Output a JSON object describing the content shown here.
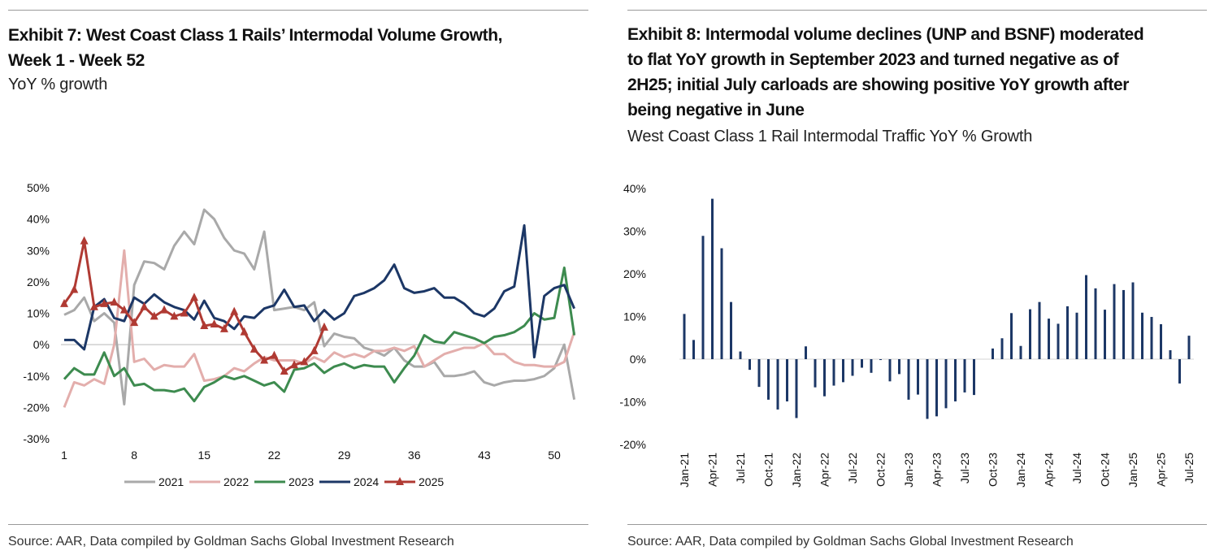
{
  "exhibit7": {
    "title_line1": "Exhibit 7: West Coast Class 1 Rails’ Intermodal Volume Growth,",
    "title_line2": "Week 1 - Week 52",
    "subtitle": "YoY % growth",
    "source": "Source: AAR, Data compiled by Goldman Sachs Global Investment Research"
  },
  "exhibit8": {
    "title_line1": "Exhibit 8: Intermodal volume declines (UNP and BSNF) moderated",
    "title_line2": "to flat YoY growth in September 2023 and turned negative as of",
    "title_line3": "2H25; initial July carloads are showing positive YoY growth after",
    "title_line4": "being negative in June",
    "subtitle": "West Coast Class 1 Rail Intermodal Traffic YoY % Growth",
    "source": "Source: AAR, Data compiled by Goldman Sachs Global Investment Research"
  },
  "chart_data": [
    {
      "type": "line",
      "title": "West Coast Class 1 Rails’ Intermodal Volume Growth, Week 1 - Week 52",
      "ylabel": "YoY % growth",
      "ylim": [
        -30,
        50
      ],
      "yticks": [
        "50%",
        "40%",
        "30%",
        "20%",
        "10%",
        "0%",
        "-10%",
        "-20%",
        "-30%"
      ],
      "xticks": [
        "1",
        "8",
        "15",
        "22",
        "29",
        "36",
        "43",
        "50"
      ],
      "xtick_values": [
        1,
        8,
        15,
        22,
        29,
        36,
        43,
        50
      ],
      "legend_placement": "bottom",
      "series": [
        {
          "name": "2021",
          "color": "#a9a9a9",
          "marker": "none",
          "values": [
            9.5,
            11,
            15,
            7.5,
            10,
            7,
            -19,
            19,
            26.5,
            26,
            24,
            31.5,
            36,
            32,
            43,
            40,
            34,
            30,
            29,
            24,
            36,
            11,
            11.5,
            12,
            11,
            13.5,
            -0.5,
            3.5,
            2.5,
            2,
            -1,
            -2,
            -3.5,
            -1,
            -5,
            -7,
            -7,
            -5.5,
            -10,
            -10,
            -9.5,
            -8.5,
            -12,
            -13,
            -12,
            -11.5,
            -11.5,
            -11,
            -10,
            -7.5,
            0,
            -17.5
          ]
        },
        {
          "name": "2022",
          "color": "#e3aeac",
          "marker": "none",
          "values": [
            -20,
            -12,
            -13,
            -11,
            -12.5,
            0,
            30,
            -5.5,
            -4.5,
            -8,
            -6.5,
            -7,
            -7,
            -3,
            -11.5,
            -11,
            -10,
            -7.5,
            -8.5,
            -6,
            -4,
            -5,
            -5,
            -5,
            -6,
            -4,
            -5.5,
            -2.5,
            -4,
            -3,
            -4,
            -2,
            -2,
            -1,
            -2,
            -0.5,
            -7,
            -5,
            -3,
            -2,
            -1,
            -1,
            0.5,
            -3,
            -3,
            -5.5,
            -6.5,
            -6.5,
            -7,
            -7,
            -5.5,
            4
          ]
        },
        {
          "name": "2023",
          "color": "#3d8b4f",
          "marker": "none",
          "values": [
            -11,
            -7.5,
            -9.5,
            -9.5,
            -2.5,
            -10,
            -7.5,
            -13,
            -12.5,
            -14.5,
            -14.5,
            -15,
            -14,
            -18,
            -13.5,
            -12,
            -10,
            -11,
            -10,
            -11.5,
            -13,
            -12,
            -15,
            -8,
            -7.5,
            -6,
            -9,
            -7,
            -6,
            -7.5,
            -6.5,
            -7,
            -7,
            -12,
            -7.5,
            -3.5,
            3,
            1,
            0.5,
            4,
            3,
            2,
            0.5,
            2.5,
            3,
            4,
            6,
            10,
            8,
            8.5,
            24.5,
            3
          ]
        },
        {
          "name": "2024",
          "color": "#1c3766",
          "marker": "none",
          "values": [
            1.5,
            1.5,
            -1.5,
            12,
            14.5,
            8.5,
            7.5,
            15,
            13,
            16,
            13.5,
            12,
            11,
            8,
            14,
            8.5,
            7.5,
            5,
            9,
            8.5,
            11.5,
            12.5,
            17.5,
            12,
            12.5,
            7.5,
            11,
            8,
            10,
            15.5,
            16.5,
            18,
            20.5,
            25.5,
            18,
            16.5,
            17,
            18,
            15,
            15,
            13,
            10,
            9,
            11.5,
            17,
            18.5,
            38,
            -4,
            15.5,
            18,
            19,
            11.5
          ]
        },
        {
          "name": "2025",
          "color": "#b03a33",
          "marker": "triangle",
          "values": [
            13,
            17.5,
            33,
            12,
            13,
            13.5,
            11,
            7,
            12,
            9,
            11,
            9,
            10,
            15,
            6,
            6.5,
            5,
            10.5,
            4,
            -1.5,
            -5,
            -3.5,
            -8.5,
            -6.5,
            -5.5,
            -2,
            5.5
          ]
        }
      ]
    },
    {
      "type": "bar",
      "title": "West Coast Class 1 Rail Intermodal Traffic YoY % Growth",
      "ylim": [
        -20,
        40
      ],
      "yticks": [
        "40%",
        "30%",
        "20%",
        "10%",
        "0%",
        "-10%",
        "-20%"
      ],
      "color": "#1c3766",
      "xtick_labels": [
        "Jan-21",
        "Apr-21",
        "Jul-21",
        "Oct-21",
        "Jan-22",
        "Apr-22",
        "Jul-22",
        "Oct-22",
        "Jan-23",
        "Apr-23",
        "Jul-23",
        "Oct-23",
        "Jan-24",
        "Apr-24",
        "Jul-24",
        "Oct-24",
        "Jan-25",
        "Apr-25",
        "Jul-25"
      ],
      "categories": [
        "Jan-21",
        "Feb-21",
        "Mar-21",
        "Apr-21",
        "May-21",
        "Jun-21",
        "Jul-21",
        "Aug-21",
        "Sep-21",
        "Oct-21",
        "Nov-21",
        "Dec-21",
        "Jan-22",
        "Feb-22",
        "Mar-22",
        "Apr-22",
        "May-22",
        "Jun-22",
        "Jul-22",
        "Aug-22",
        "Sep-22",
        "Oct-22",
        "Nov-22",
        "Dec-22",
        "Jan-23",
        "Feb-23",
        "Mar-23",
        "Apr-23",
        "May-23",
        "Jun-23",
        "Jul-23",
        "Aug-23",
        "Sep-23",
        "Oct-23",
        "Nov-23",
        "Dec-23",
        "Jan-24",
        "Feb-24",
        "Mar-24",
        "Apr-24",
        "May-24",
        "Jun-24",
        "Jul-24",
        "Aug-24",
        "Sep-24",
        "Oct-24",
        "Nov-24",
        "Dec-24",
        "Jan-25",
        "Feb-25",
        "Mar-25",
        "Apr-25",
        "May-25",
        "Jun-25",
        "Jul-25"
      ],
      "values": [
        10.6,
        4.5,
        28.9,
        37.6,
        26,
        13.4,
        1.8,
        -2.5,
        -6.5,
        -9.5,
        -11.8,
        -9.9,
        -13.8,
        3,
        -6.6,
        -8.7,
        -6.2,
        -5.4,
        -3.9,
        -2,
        -3.2,
        -0.2,
        -5.2,
        -3.5,
        -9.5,
        -8.3,
        -14,
        -13.4,
        -11.5,
        -9.9,
        -7.8,
        -8.4,
        0,
        2.5,
        4.9,
        10.8,
        3.1,
        11.7,
        13.4,
        9.5,
        8.3,
        12.4,
        10.9,
        19.7,
        16.6,
        11.6,
        17.6,
        16.2,
        18,
        10.9,
        9.9,
        8.2,
        2.1,
        -5.7,
        5.5
      ]
    }
  ]
}
